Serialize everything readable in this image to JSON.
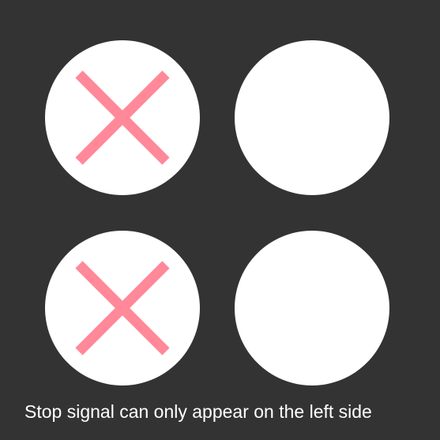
{
  "caption": "Stop signal can only appear on the left side",
  "colors": {
    "background": "#333333",
    "circle": "#ffffff",
    "stop_mark": "#ff8899"
  },
  "circles": [
    {
      "position": "top-left",
      "marked": true,
      "icon": "cross-icon"
    },
    {
      "position": "top-right",
      "marked": false
    },
    {
      "position": "bottom-left",
      "marked": true,
      "icon": "cross-icon"
    },
    {
      "position": "bottom-right",
      "marked": false
    }
  ]
}
